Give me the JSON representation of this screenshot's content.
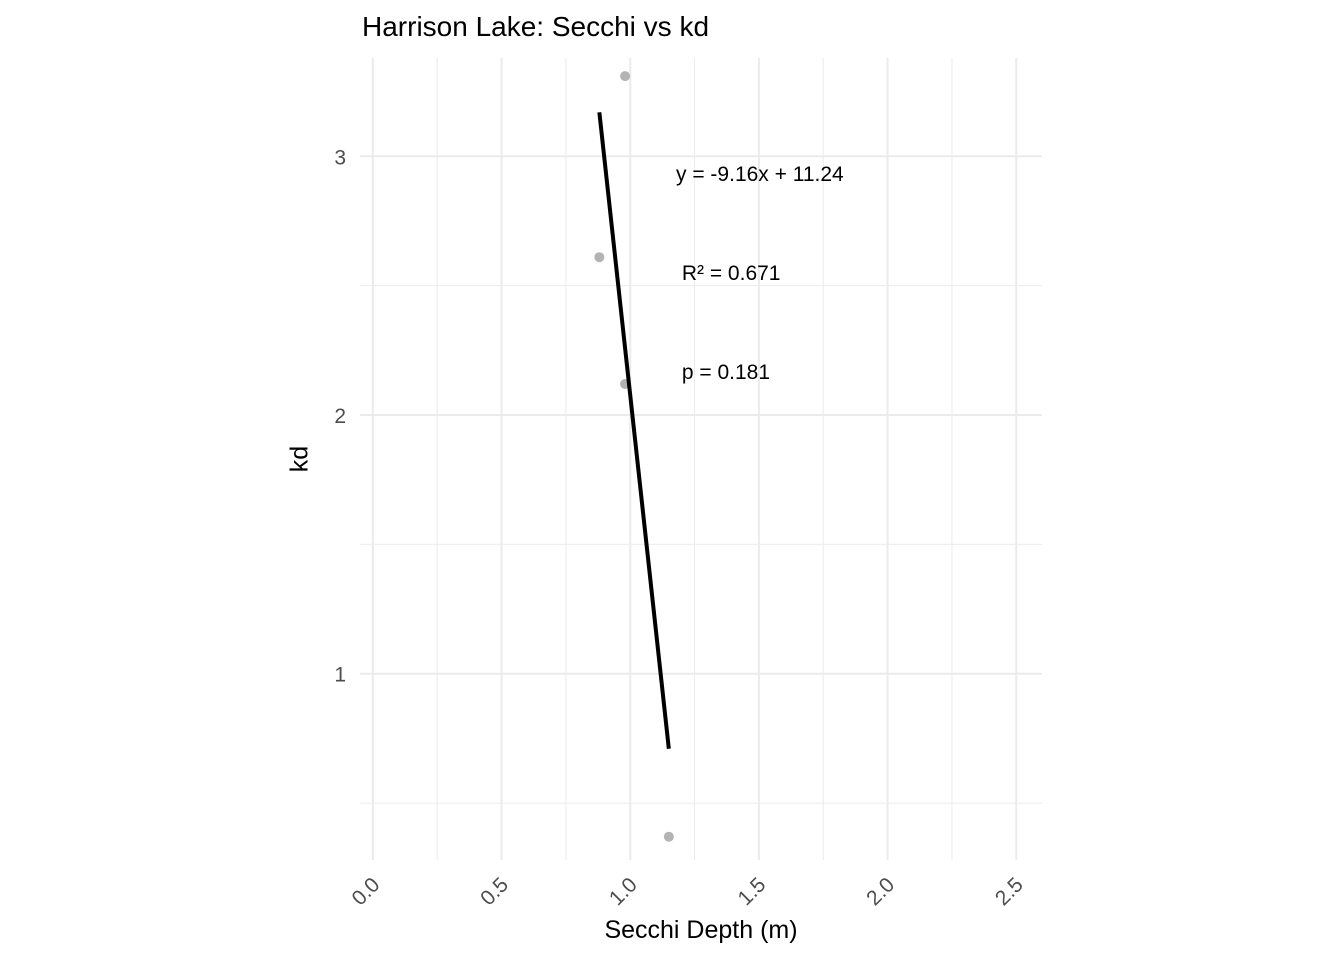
{
  "chart_data": {
    "type": "scatter",
    "title": "Harrison Lake: Secchi vs kd",
    "xlabel": "Secchi Depth (m)",
    "ylabel": "kd",
    "xlim": [
      -0.05,
      2.6
    ],
    "ylim": [
      0.28,
      3.38
    ],
    "x_ticks": [
      0.0,
      0.5,
      1.0,
      1.5,
      2.0,
      2.5
    ],
    "x_tick_labels": [
      "0.0",
      "0.5",
      "1.0",
      "1.5",
      "2.0",
      "2.5"
    ],
    "y_ticks": [
      1,
      2,
      3
    ],
    "y_tick_labels": [
      "1",
      "2",
      "3"
    ],
    "grid": true,
    "points": [
      {
        "x": 0.98,
        "y": 3.31
      },
      {
        "x": 0.88,
        "y": 2.61
      },
      {
        "x": 0.98,
        "y": 2.12
      },
      {
        "x": 1.15,
        "y": 0.37
      }
    ],
    "fit_line": {
      "x": [
        0.88,
        1.15
      ],
      "y": [
        3.17,
        0.71
      ]
    },
    "annotation": [
      "y = -9.16x + 11.24",
      " R² = 0.671",
      " p = 0.181"
    ],
    "point_color": "#b3b3b3",
    "line_color": "#000000",
    "grid_color": "#ebebeb"
  }
}
